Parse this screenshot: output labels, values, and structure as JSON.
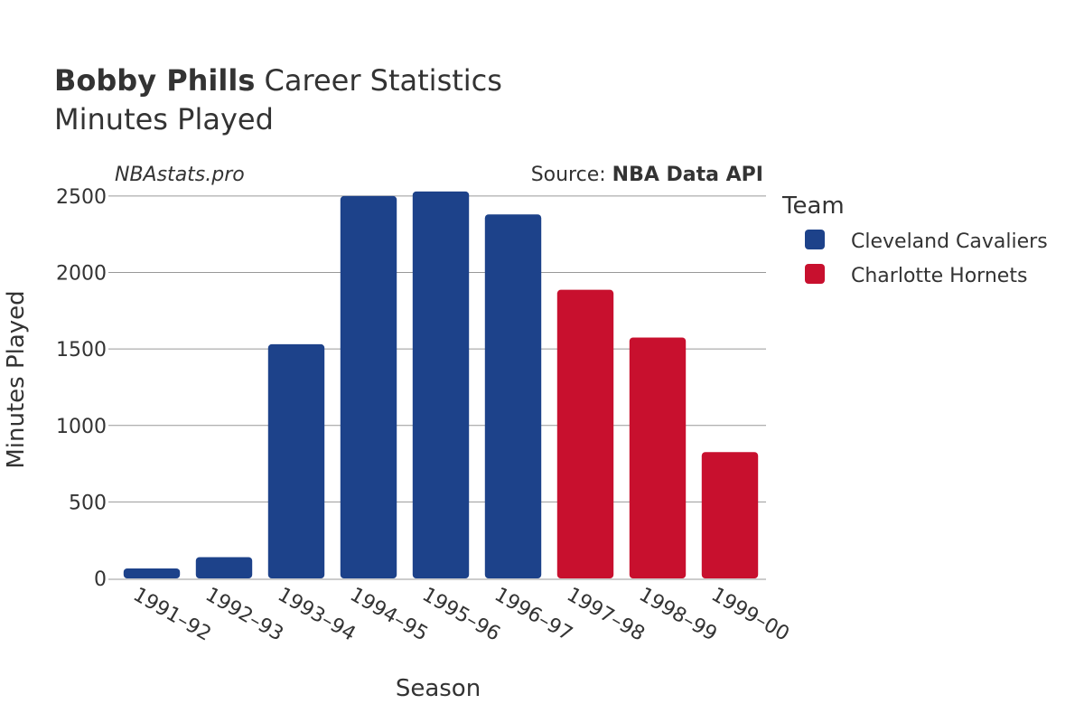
{
  "title": {
    "player": "Bobby Phills",
    "rest": "Career Statistics",
    "subtitle": "Minutes Played"
  },
  "brand": "NBAstats.pro",
  "source": {
    "prefix": "Source: ",
    "name": "NBA Data API"
  },
  "colors": {
    "Cleveland Cavaliers": "#1D428A",
    "Charlotte Hornets": "#C8102E"
  },
  "chart_data": {
    "type": "bar",
    "title": "Bobby Phills Career Statistics",
    "subtitle": "Minutes Played",
    "xlabel": "Season",
    "ylabel": "Minutes Played",
    "ylim": [
      0,
      2600
    ],
    "yticks": [
      0,
      500,
      1000,
      1500,
      2000,
      2500
    ],
    "categories": [
      "1991–92",
      "1992–93",
      "1993–94",
      "1994–95",
      "1995–96",
      "1996–97",
      "1997–98",
      "1998–99",
      "1999–00"
    ],
    "values": [
      65,
      139,
      1531,
      2500,
      2530,
      2380,
      1887,
      1575,
      826
    ],
    "teams": [
      "Cleveland Cavaliers",
      "Cleveland Cavaliers",
      "Cleveland Cavaliers",
      "Cleveland Cavaliers",
      "Cleveland Cavaliers",
      "Cleveland Cavaliers",
      "Charlotte Hornets",
      "Charlotte Hornets",
      "Charlotte Hornets"
    ],
    "legend": {
      "title": "Team",
      "entries": [
        "Cleveland Cavaliers",
        "Charlotte Hornets"
      ],
      "placement": "right"
    },
    "grid": true
  }
}
